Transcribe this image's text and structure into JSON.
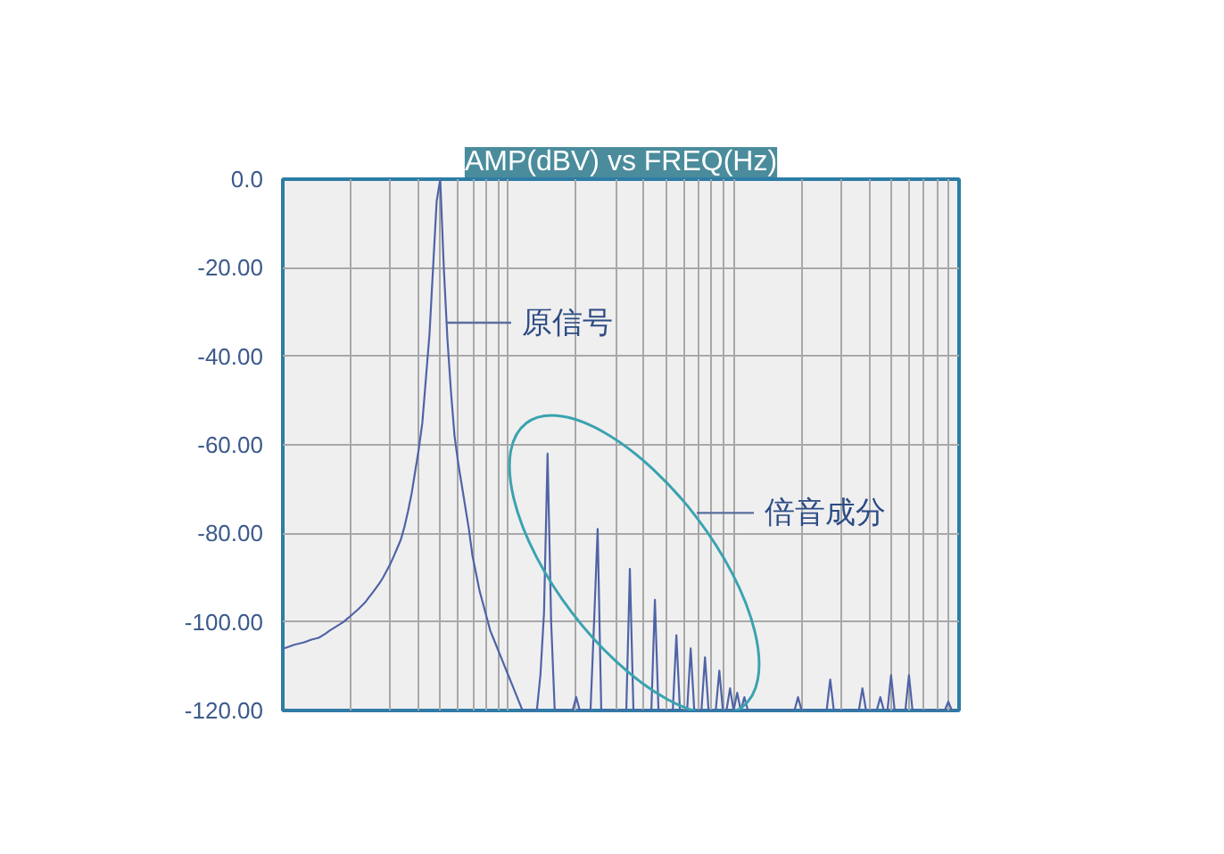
{
  "chart_data": {
    "type": "line",
    "title": "AMP(dBV) vs FREQ(Hz)",
    "categories": [
      null,
      null,
      null,
      null,
      null,
      null,
      null,
      null,
      null,
      null,
      null,
      null,
      null,
      null,
      null,
      null,
      null,
      null,
      null,
      null,
      null,
      null,
      null,
      null,
      null,
      null,
      null,
      null,
      null,
      null,
      null,
      null,
      null,
      null,
      null,
      null,
      null,
      null,
      null,
      null,
      null,
      null,
      null,
      null,
      null,
      null,
      null,
      null,
      null,
      null,
      null,
      null,
      null,
      null,
      null,
      null,
      null,
      null,
      null,
      null,
      null,
      null,
      null,
      null,
      null,
      null,
      null,
      null,
      null,
      null,
      null,
      null,
      null,
      null,
      null,
      null,
      null,
      null,
      null,
      null,
      null,
      null,
      null,
      null,
      null,
      null,
      null,
      null,
      null,
      null,
      null,
      null,
      null,
      null,
      null,
      null,
      null,
      null,
      null,
      null,
      null,
      null,
      null,
      null,
      null,
      null,
      null,
      null,
      null,
      null,
      null,
      null,
      null,
      null,
      null,
      null,
      null,
      null,
      null,
      null,
      null,
      null,
      null,
      null,
      null,
      null,
      null,
      null,
      null,
      null,
      null,
      null,
      null,
      null,
      null,
      null,
      null,
      null,
      null,
      null,
      null,
      null,
      null,
      null,
      null,
      null,
      null,
      null,
      null,
      null,
      null,
      null,
      null,
      null,
      null,
      null,
      null,
      null,
      null,
      null,
      null,
      null,
      null,
      null,
      null,
      null,
      null,
      null,
      null,
      null,
      null,
      null,
      null,
      null,
      null,
      null,
      null,
      null,
      null,
      null,
      null,
      null,
      null,
      null,
      null,
      null,
      null,
      null,
      null,
      null
    ],
    "series": [
      {
        "color": "#4f64a6",
        "values": [
          -106,
          -105.8,
          -105.5,
          -105.2,
          -105,
          -104.8,
          -104.6,
          -104.3,
          -104,
          -103.8,
          -103.6,
          -103.1,
          -102.6,
          -102,
          -101.5,
          -101,
          -100.5,
          -100,
          -99.3,
          -98.6,
          -97.9,
          -97.2,
          -96.4,
          -95.6,
          -94.5,
          -93.5,
          -92.4,
          -91.3,
          -90,
          -88.5,
          -87,
          -85.2,
          -83.3,
          -81.4,
          -78.5,
          -75,
          -71,
          -66,
          -61,
          -55,
          -45,
          -35,
          -20,
          -5,
          0,
          -20,
          -36,
          -48,
          -58,
          -64,
          -69,
          -74,
          -79,
          -85,
          -89,
          -93,
          -96,
          -99,
          -102,
          -104,
          -106,
          -108,
          -110,
          -112,
          -114,
          -116,
          -118,
          -120,
          -120,
          -120,
          -120,
          -120,
          -112,
          -98,
          -62,
          -100,
          -120,
          -120,
          -120,
          -120,
          -120,
          -120,
          -117,
          -120,
          -120,
          -120,
          -120,
          -100,
          -79,
          -120,
          -120,
          -120,
          -120,
          -120,
          -120,
          -120,
          -120,
          -88,
          -120,
          -120,
          -120,
          -120,
          -120,
          -120,
          -95,
          -120,
          -120,
          -120,
          -120,
          -120,
          -103,
          -120,
          -120,
          -120,
          -106,
          -120,
          -120,
          -120,
          -108,
          -120,
          -120,
          -120,
          -111,
          -120,
          -120,
          -115,
          -120,
          -116,
          -120,
          -117,
          -120,
          -120,
          -120,
          -120,
          -120,
          -120,
          -120,
          -120,
          -120,
          -120,
          -120,
          -120,
          -120,
          -120,
          -117,
          -120,
          -120,
          -120,
          -120,
          -120,
          -120,
          -120,
          -120,
          -113,
          -120,
          -120,
          -120,
          -120,
          -120,
          -120,
          -120,
          -120,
          -115,
          -120,
          -120,
          -120,
          -120,
          -117,
          -120,
          -120,
          -112,
          -120,
          -120,
          -120,
          -120,
          -112,
          -120,
          -120,
          -120,
          -120,
          -120,
          -120,
          -120,
          -120,
          -120,
          -120,
          -118,
          -120,
          -120,
          -120
        ]
      }
    ],
    "ylim": [
      -120,
      0
    ],
    "yticks": [
      {
        "value": 0,
        "label": "0.0"
      },
      {
        "value": -20,
        "label": "-20.00"
      },
      {
        "value": -40,
        "label": "-40.00"
      },
      {
        "value": -60,
        "label": "-60.00"
      },
      {
        "value": -80,
        "label": "-80.00"
      },
      {
        "value": -100,
        "label": "-100.00"
      },
      {
        "value": -120,
        "label": "-120.00"
      }
    ],
    "tick_labels": "y",
    "grid": true,
    "annotations": [
      "原信号",
      "倍音成分"
    ]
  }
}
